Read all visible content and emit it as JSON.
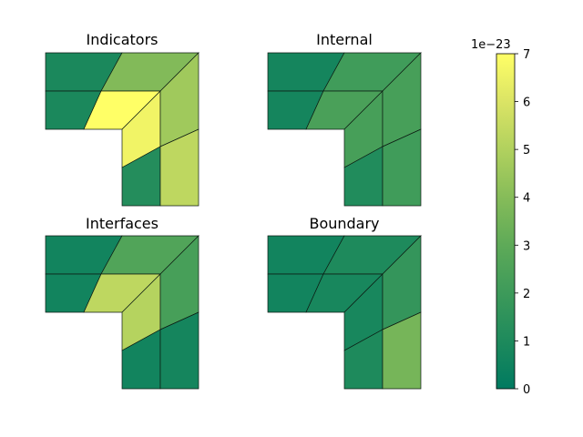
{
  "chart_data": [
    {
      "type": "heatmap",
      "title": "Indicators",
      "cells": [
        {
          "id": "tl",
          "value": 0.9
        },
        {
          "id": "tr",
          "value": 3.9
        },
        {
          "id": "ml",
          "value": 0.9
        },
        {
          "id": "c1",
          "value": 7.0
        },
        {
          "id": "c2",
          "value": 6.6
        },
        {
          "id": "rt",
          "value": 4.6
        },
        {
          "id": "bl",
          "value": 1.2
        },
        {
          "id": "br",
          "value": 5.3
        }
      ]
    },
    {
      "type": "heatmap",
      "title": "Internal",
      "cells": [
        {
          "id": "tl",
          "value": 0.7
        },
        {
          "id": "tr",
          "value": 2.1
        },
        {
          "id": "ml",
          "value": 0.7
        },
        {
          "id": "c1",
          "value": 2.4
        },
        {
          "id": "c2",
          "value": 2.3
        },
        {
          "id": "rt",
          "value": 2.3
        },
        {
          "id": "bl",
          "value": 1.1
        },
        {
          "id": "br",
          "value": 2.1
        }
      ]
    },
    {
      "type": "heatmap",
      "title": "Interfaces",
      "cells": [
        {
          "id": "tl",
          "value": 0.6
        },
        {
          "id": "tr",
          "value": 2.6
        },
        {
          "id": "ml",
          "value": 0.6
        },
        {
          "id": "c1",
          "value": 5.3
        },
        {
          "id": "c2",
          "value": 5.1
        },
        {
          "id": "rt",
          "value": 2.3
        },
        {
          "id": "bl",
          "value": 0.6
        },
        {
          "id": "br",
          "value": 0.7
        }
      ]
    },
    {
      "type": "heatmap",
      "title": "Boundary",
      "cells": [
        {
          "id": "tl",
          "value": 0.6
        },
        {
          "id": "tr",
          "value": 1.0
        },
        {
          "id": "ml",
          "value": 0.6
        },
        {
          "id": "c1",
          "value": 0.8
        },
        {
          "id": "c2",
          "value": 0.8
        },
        {
          "id": "rt",
          "value": 1.7
        },
        {
          "id": "bl",
          "value": 1.0
        },
        {
          "id": "br",
          "value": 3.6
        }
      ]
    }
  ],
  "colorbar": {
    "min": 0,
    "max": 7,
    "ticks": [
      "0",
      "1",
      "2",
      "3",
      "4",
      "5",
      "6",
      "7"
    ],
    "offset_label": "1e−23",
    "colormap_stops": [
      {
        "value": 0,
        "color": "#007a60"
      },
      {
        "value": 1,
        "color": "#1e8a5c"
      },
      {
        "value": 2,
        "color": "#3d9a5a"
      },
      {
        "value": 3,
        "color": "#5eaa58"
      },
      {
        "value": 4,
        "color": "#86bc59"
      },
      {
        "value": 5,
        "color": "#b1d15e"
      },
      {
        "value": 6,
        "color": "#dbe465"
      },
      {
        "value": 7,
        "color": "#ffff66"
      }
    ]
  }
}
